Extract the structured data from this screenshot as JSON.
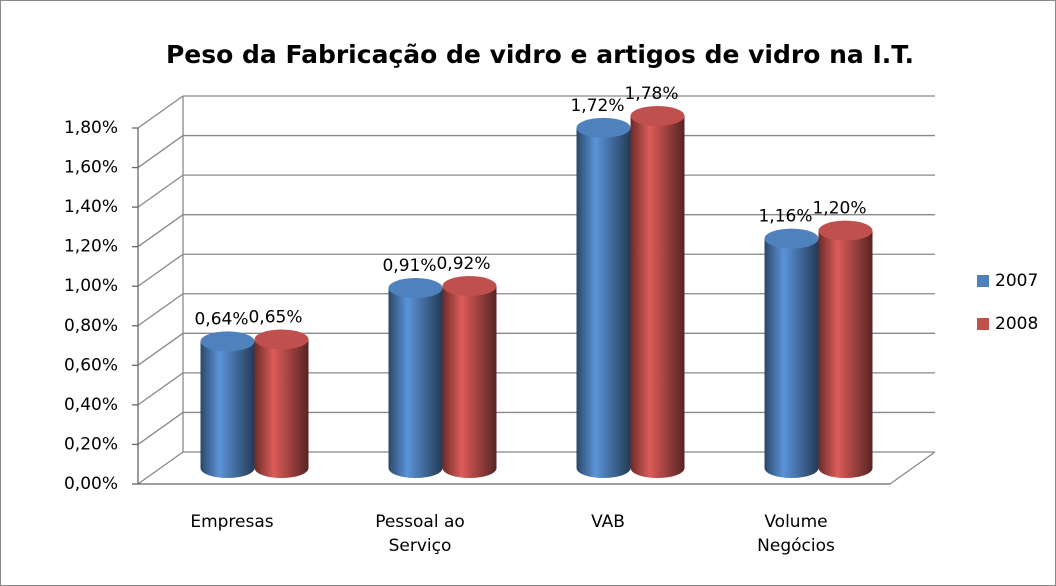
{
  "chart_data": {
    "type": "bar3d-cylinder",
    "title": "Peso da Fabricação de vidro e artigos de vidro na I.T.",
    "categories": [
      "Empresas",
      "Pessoal ao Serviço",
      "VAB",
      "Volume Negócios"
    ],
    "series": [
      {
        "name": "2007",
        "color": "#4f81bd",
        "values": [
          0.64,
          0.91,
          1.72,
          1.16
        ],
        "value_labels": [
          "0,64%",
          "0,91%",
          "1,72%",
          "1,16%"
        ]
      },
      {
        "name": "2008",
        "color": "#c0504d",
        "values": [
          0.65,
          0.92,
          1.78,
          1.2
        ],
        "value_labels": [
          "0,65%",
          "0,92%",
          "1,78%",
          "1,20%"
        ]
      }
    ],
    "ylim": [
      0,
      1.8
    ],
    "yticks": [
      {
        "value": 0,
        "label": "0,00%"
      },
      {
        "value": 0.2,
        "label": "0,20%"
      },
      {
        "value": 0.4,
        "label": "0,40%"
      },
      {
        "value": 0.6,
        "label": "0,60%"
      },
      {
        "value": 0.8,
        "label": "0,80%"
      },
      {
        "value": 1.0,
        "label": "1,00%"
      },
      {
        "value": 1.2,
        "label": "1,20%"
      },
      {
        "value": 1.4,
        "label": "1,40%"
      },
      {
        "value": 1.6,
        "label": "1,60%"
      },
      {
        "value": 1.8,
        "label": "1,80%"
      }
    ],
    "grid": true,
    "legend": "right"
  }
}
